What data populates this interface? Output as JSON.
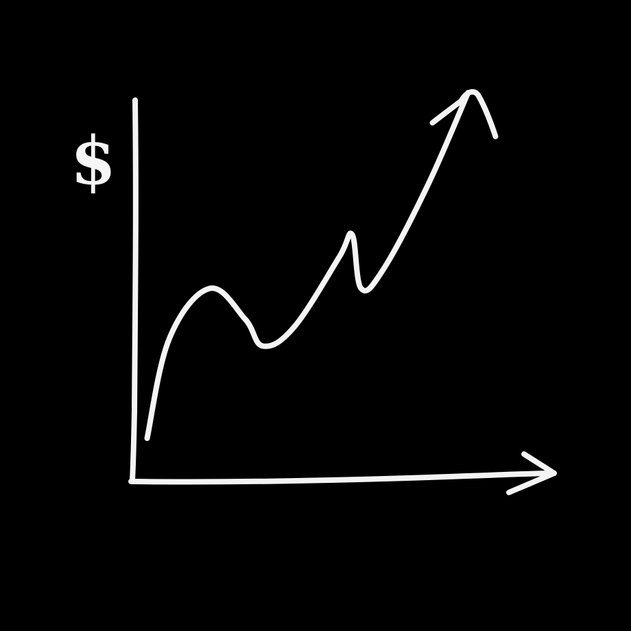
{
  "chart_data": {
    "type": "line",
    "title": "",
    "xlabel": "",
    "ylabel": "$",
    "grid": false,
    "legend": "none",
    "xlim": [
      0,
      10
    ],
    "ylim": [
      0,
      10
    ],
    "series": [
      {
        "values": [
          {
            "x": 0.3,
            "y": 1.0
          },
          {
            "x": 0.8,
            "y": 3.6
          },
          {
            "x": 1.7,
            "y": 4.9
          },
          {
            "x": 2.5,
            "y": 4.1
          },
          {
            "x": 2.9,
            "y": 3.4
          },
          {
            "x": 3.6,
            "y": 3.9
          },
          {
            "x": 4.6,
            "y": 5.7
          },
          {
            "x": 4.9,
            "y": 6.3
          },
          {
            "x": 5.1,
            "y": 4.9
          },
          {
            "x": 5.6,
            "y": 5.4
          },
          {
            "x": 6.6,
            "y": 7.6
          },
          {
            "x": 7.5,
            "y": 10.0
          }
        ]
      }
    ],
    "colors": {
      "background": "#000000",
      "stroke": "#f4f4f4"
    }
  }
}
